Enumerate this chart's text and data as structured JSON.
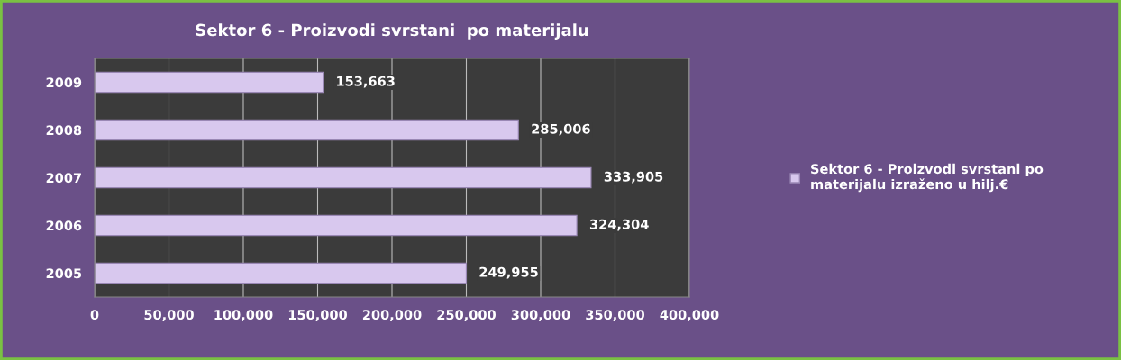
{
  "chart_data": {
    "type": "bar",
    "orientation": "horizontal",
    "title": "Sektor 6 - Proizvodi svrstani  po materijalu",
    "categories": [
      "2009",
      "2008",
      "2007",
      "2006",
      "2005"
    ],
    "series": [
      {
        "name": "Sektor 6 - Proizvodi svrstani po materijalu izraženo u hilj.€",
        "color": "#d8c8ee",
        "values": [
          153663,
          285006,
          333905,
          324304,
          249955
        ]
      }
    ],
    "value_labels": [
      "153,663",
      "285,006",
      "333,905",
      "324,304",
      "249,955"
    ],
    "xlim": [
      0,
      400000
    ],
    "xticks": [
      {
        "value": 0,
        "label": "0"
      },
      {
        "value": 50000,
        "label": "50,000"
      },
      {
        "value": 100000,
        "label": "100,000"
      },
      {
        "value": 150000,
        "label": "150,000"
      },
      {
        "value": 200000,
        "label": "200,000"
      },
      {
        "value": 250000,
        "label": "250,000"
      },
      {
        "value": 300000,
        "label": "300,000"
      },
      {
        "value": 350000,
        "label": "350,000"
      },
      {
        "value": 400000,
        "label": "400,000"
      }
    ],
    "grid": "x",
    "legend": "right"
  }
}
